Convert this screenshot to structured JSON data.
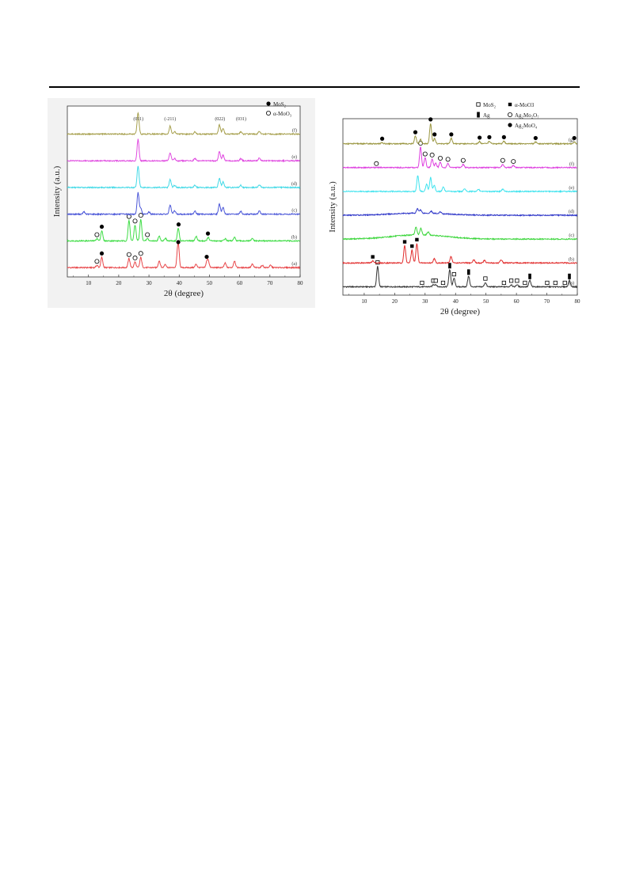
{
  "chart_data": [
    {
      "type": "line",
      "xlabel": "2θ (degree)",
      "ylabel": "Intensity (a.u.)",
      "xlim": [
        3,
        80
      ],
      "xticks": [
        10,
        20,
        30,
        40,
        50,
        60,
        70,
        80
      ],
      "legend": [
        {
          "symbol": "filled-circle",
          "label": "MoS₂"
        },
        {
          "symbol": "open-circle",
          "label": "α-MoO₃"
        }
      ],
      "legend_position": "top-right",
      "peak_labels": [
        {
          "text": "(011)",
          "x": 26.5
        },
        {
          "text": "(-211)",
          "x": 37
        },
        {
          "text": "(022)",
          "x": 53.5
        },
        {
          "text": "(031)",
          "x": 60.5
        }
      ],
      "series": [
        {
          "label": "(a)",
          "color": "#e8474a",
          "peaks": [
            [
              12.8,
              0.1
            ],
            [
              14.4,
              0.45
            ],
            [
              23.4,
              0.4
            ],
            [
              25.4,
              0.25
            ],
            [
              27.3,
              0.45
            ],
            [
              33.4,
              0.3
            ],
            [
              35.4,
              0.15
            ],
            [
              39.4,
              0.25
            ],
            [
              39.7,
              0.95
            ],
            [
              45.6,
              0.15
            ],
            [
              49.1,
              0.2
            ],
            [
              49.6,
              0.3
            ],
            [
              55.2,
              0.2
            ],
            [
              58.3,
              0.3
            ],
            [
              64.2,
              0.15
            ],
            [
              67.5,
              0.1
            ],
            [
              70.2,
              0.1
            ]
          ],
          "markers": [
            {
              "x": 12.8,
              "s": "open-circle"
            },
            {
              "x": 14.4,
              "s": "filled-circle"
            },
            {
              "x": 23.4,
              "s": "open-circle"
            },
            {
              "x": 25.4,
              "s": "open-circle"
            },
            {
              "x": 27.3,
              "s": "open-circle"
            },
            {
              "x": 39.7,
              "s": "filled-circle"
            },
            {
              "x": 49.1,
              "s": "filled-circle"
            }
          ]
        },
        {
          "label": "(b)",
          "color": "#3ddc44",
          "peaks": [
            [
              12.8,
              0.1
            ],
            [
              14.4,
              0.45
            ],
            [
              23.4,
              0.9
            ],
            [
              25.4,
              0.7
            ],
            [
              27.3,
              0.95
            ],
            [
              29.5,
              0.1
            ],
            [
              33.4,
              0.2
            ],
            [
              35.4,
              0.12
            ],
            [
              39.7,
              0.55
            ],
            [
              45.6,
              0.2
            ],
            [
              49.6,
              0.15
            ],
            [
              55.2,
              0.1
            ],
            [
              58.3,
              0.15
            ],
            [
              64.2,
              0.1
            ]
          ],
          "markers": [
            {
              "x": 12.8,
              "s": "open-circle"
            },
            {
              "x": 14.4,
              "s": "filled-circle"
            },
            {
              "x": 23.4,
              "s": "open-circle"
            },
            {
              "x": 25.4,
              "s": "open-circle"
            },
            {
              "x": 27.3,
              "s": "open-circle"
            },
            {
              "x": 29.5,
              "s": "open-circle"
            },
            {
              "x": 39.8,
              "s": "filled-circle"
            },
            {
              "x": 49.5,
              "s": "filled-circle"
            }
          ]
        },
        {
          "label": "(c)",
          "color": "#4a56d8",
          "peaks": [
            [
              8.5,
              0.1
            ],
            [
              26.4,
              0.95
            ],
            [
              27.3,
              0.25
            ],
            [
              30.0,
              0.1
            ],
            [
              37.0,
              0.4
            ],
            [
              38.5,
              0.15
            ],
            [
              45.2,
              0.15
            ],
            [
              53.3,
              0.45
            ],
            [
              54.5,
              0.3
            ],
            [
              60.4,
              0.12
            ],
            [
              66.5,
              0.15
            ]
          ],
          "markers": []
        },
        {
          "label": "(d)",
          "color": "#41d9e6",
          "peaks": [
            [
              26.4,
              0.95
            ],
            [
              37.0,
              0.35
            ],
            [
              38.5,
              0.1
            ],
            [
              45.2,
              0.1
            ],
            [
              53.3,
              0.4
            ],
            [
              54.5,
              0.25
            ],
            [
              60.4,
              0.1
            ],
            [
              66.5,
              0.12
            ]
          ],
          "markers": []
        },
        {
          "label": "(e)",
          "color": "#e04be0",
          "peaks": [
            [
              26.4,
              0.95
            ],
            [
              37.0,
              0.35
            ],
            [
              38.5,
              0.1
            ],
            [
              45.2,
              0.1
            ],
            [
              53.3,
              0.4
            ],
            [
              54.5,
              0.25
            ],
            [
              60.4,
              0.1
            ],
            [
              66.5,
              0.12
            ]
          ],
          "markers": []
        },
        {
          "label": "(f)",
          "color": "#a7a04e",
          "peaks": [
            [
              26.4,
              0.95
            ],
            [
              37.0,
              0.35
            ],
            [
              38.5,
              0.1
            ],
            [
              45.2,
              0.1
            ],
            [
              53.3,
              0.4
            ],
            [
              54.5,
              0.25
            ],
            [
              60.4,
              0.1
            ],
            [
              66.5,
              0.12
            ]
          ],
          "markers": []
        }
      ]
    },
    {
      "type": "line",
      "xlabel": "2θ (degree)",
      "ylabel": "Intensity (a.u.)",
      "xlim": [
        3,
        80
      ],
      "xticks": [
        10,
        20,
        30,
        40,
        50,
        60,
        70,
        80
      ],
      "legend": [
        {
          "symbol": "open-square",
          "label": "MoS₂"
        },
        {
          "symbol": "filled-square",
          "label": "α-MoO3"
        },
        {
          "symbol": "filled-bar",
          "label": "Ag"
        },
        {
          "symbol": "open-circle",
          "label": "Ag₂Mo₂O₇"
        },
        {
          "symbol": "filled-circle",
          "label": "Ag₂MoO₄"
        }
      ],
      "legend_position": "top-right",
      "series": [
        {
          "label": "(a)",
          "color": "#333333",
          "peaks": [
            [
              14.4,
              0.95
            ],
            [
              32.7,
              0.1
            ],
            [
              33.5,
              0.1
            ],
            [
              38.1,
              0.8
            ],
            [
              39.5,
              0.4
            ],
            [
              44.3,
              0.5
            ],
            [
              49.8,
              0.2
            ],
            [
              58.3,
              0.1
            ],
            [
              60.2,
              0.1
            ],
            [
              64.4,
              0.3
            ],
            [
              77.4,
              0.3
            ]
          ],
          "markers": [
            {
              "x": 14.4,
              "s": "open-square"
            },
            {
              "x": 29.0,
              "s": "open-square"
            },
            {
              "x": 32.7,
              "s": "open-square"
            },
            {
              "x": 33.5,
              "s": "open-square"
            },
            {
              "x": 35.9,
              "s": "open-square"
            },
            {
              "x": 38.1,
              "s": "filled-bar"
            },
            {
              "x": 39.5,
              "s": "open-square"
            },
            {
              "x": 44.3,
              "s": "filled-bar"
            },
            {
              "x": 49.8,
              "s": "open-square"
            },
            {
              "x": 55.9,
              "s": "open-square"
            },
            {
              "x": 58.3,
              "s": "open-square"
            },
            {
              "x": 60.2,
              "s": "open-square"
            },
            {
              "x": 62.8,
              "s": "open-square"
            },
            {
              "x": 64.4,
              "s": "filled-bar"
            },
            {
              "x": 70.1,
              "s": "open-square"
            },
            {
              "x": 72.8,
              "s": "open-square"
            },
            {
              "x": 75.9,
              "s": "open-square"
            },
            {
              "x": 77.4,
              "s": "filled-bar"
            }
          ]
        },
        {
          "label": "(b)",
          "color": "#e12b2b",
          "peaks": [
            [
              12.8,
              0.1
            ],
            [
              23.3,
              0.8
            ],
            [
              25.7,
              0.6
            ],
            [
              27.3,
              0.9
            ],
            [
              33.0,
              0.2
            ],
            [
              38.5,
              0.3
            ],
            [
              46.0,
              0.15
            ],
            [
              49.5,
              0.12
            ],
            [
              55.0,
              0.15
            ]
          ],
          "markers": [
            {
              "x": 12.8,
              "s": "filled-square"
            },
            {
              "x": 23.3,
              "s": "filled-square"
            },
            {
              "x": 25.7,
              "s": "filled-square"
            },
            {
              "x": 27.3,
              "s": "filled-square"
            }
          ]
        },
        {
          "label": "(c)",
          "color": "#3cd63c",
          "peaks": [
            [
              27.0,
              0.35
            ],
            [
              28.6,
              0.3
            ],
            [
              31.0,
              0.15
            ]
          ],
          "markers": []
        },
        {
          "label": "(d)",
          "color": "#2d35c8",
          "peaks": [
            [
              27.5,
              0.2
            ],
            [
              28.5,
              0.15
            ],
            [
              32.0,
              0.1
            ],
            [
              35.0,
              0.08
            ]
          ],
          "markers": []
        },
        {
          "label": "(e)",
          "color": "#3fe3ee",
          "peaks": [
            [
              27.6,
              0.75
            ],
            [
              30.5,
              0.35
            ],
            [
              31.8,
              0.65
            ],
            [
              33.0,
              0.3
            ],
            [
              36.0,
              0.2
            ],
            [
              43.0,
              0.12
            ],
            [
              47.5,
              0.1
            ],
            [
              55.5,
              0.1
            ]
          ],
          "markers": []
        },
        {
          "label": "(f)",
          "color": "#de3fdf",
          "peaks": [
            [
              28.5,
              0.95
            ],
            [
              30.0,
              0.45
            ],
            [
              32.3,
              0.4
            ],
            [
              33.5,
              0.2
            ],
            [
              35.0,
              0.25
            ],
            [
              37.5,
              0.2
            ],
            [
              42.5,
              0.15
            ],
            [
              55.5,
              0.15
            ],
            [
              59.0,
              0.1
            ]
          ],
          "markers": [
            {
              "x": 14.0,
              "s": "open-circle"
            },
            {
              "x": 28.5,
              "s": "open-circle"
            },
            {
              "x": 30.0,
              "s": "open-circle"
            },
            {
              "x": 32.3,
              "s": "open-circle"
            },
            {
              "x": 35.0,
              "s": "open-circle"
            },
            {
              "x": 37.5,
              "s": "open-circle"
            },
            {
              "x": 42.5,
              "s": "open-circle"
            },
            {
              "x": 55.5,
              "s": "open-circle"
            },
            {
              "x": 59.0,
              "s": "open-circle"
            }
          ]
        },
        {
          "label": "(g)",
          "color": "#9a9640",
          "peaks": [
            [
              15.9,
              0.05
            ],
            [
              26.8,
              0.35
            ],
            [
              28.5,
              0.2
            ],
            [
              31.8,
              0.95
            ],
            [
              33.1,
              0.25
            ],
            [
              38.6,
              0.25
            ],
            [
              47.9,
              0.1
            ],
            [
              51.1,
              0.12
            ],
            [
              55.9,
              0.12
            ],
            [
              66.3,
              0.08
            ],
            [
              79.0,
              0.08
            ]
          ],
          "markers": [
            {
              "x": 15.9,
              "s": "filled-circle"
            },
            {
              "x": 26.8,
              "s": "filled-circle"
            },
            {
              "x": 31.8,
              "s": "filled-circle"
            },
            {
              "x": 33.1,
              "s": "filled-circle"
            },
            {
              "x": 38.6,
              "s": "filled-circle"
            },
            {
              "x": 47.9,
              "s": "filled-circle"
            },
            {
              "x": 51.1,
              "s": "filled-circle"
            },
            {
              "x": 55.9,
              "s": "filled-circle"
            },
            {
              "x": 66.3,
              "s": "filled-circle"
            },
            {
              "x": 79.0,
              "s": "filled-circle"
            }
          ]
        }
      ]
    }
  ]
}
